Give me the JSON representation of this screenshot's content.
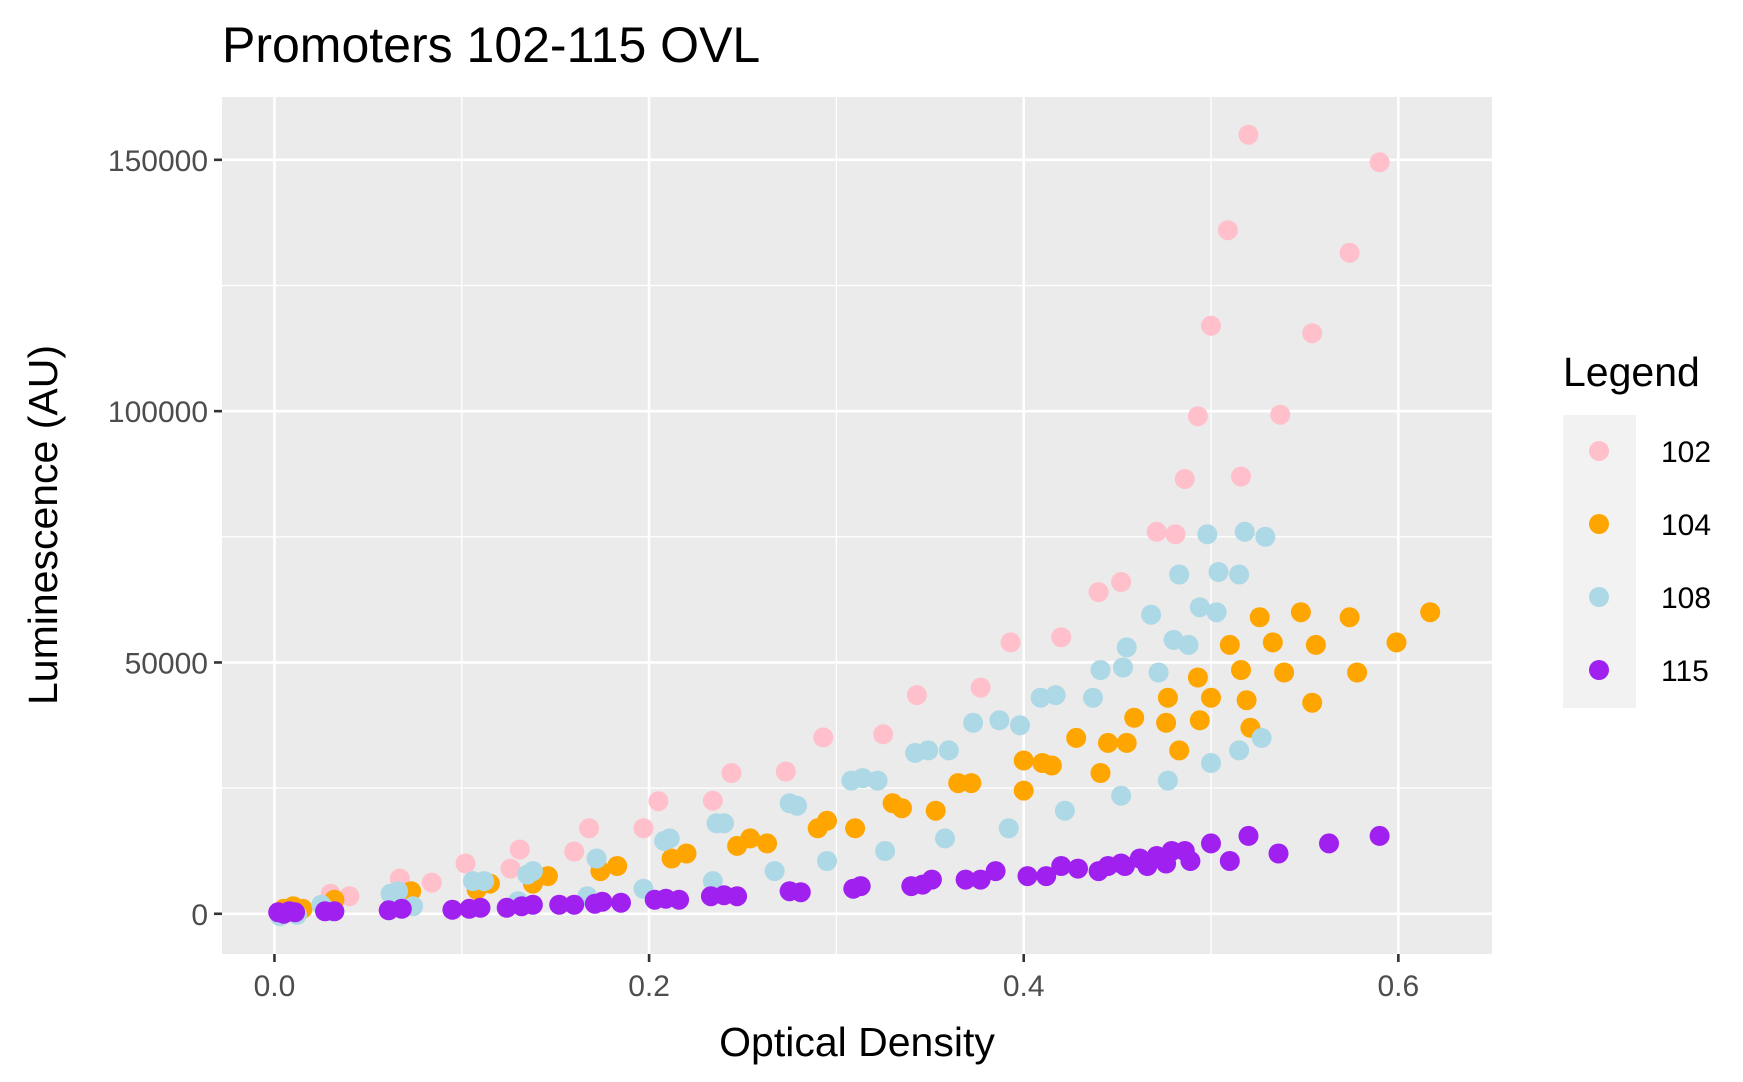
{
  "chart_data": {
    "type": "scatter",
    "title": "Promoters 102-115 OVL",
    "xlabel": "Optical Density",
    "ylabel": "Luminescence (AU)",
    "xlim": [
      -0.028,
      0.65
    ],
    "ylim": [
      -8000,
      162500
    ],
    "x_ticks": [
      0.0,
      0.2,
      0.4,
      0.6
    ],
    "x_tick_labels": [
      "0.0",
      "0.2",
      "0.4",
      "0.6"
    ],
    "y_ticks": [
      0,
      50000,
      100000,
      150000
    ],
    "y_tick_labels": [
      "0",
      "50000",
      "100000",
      "150000"
    ],
    "grid": true,
    "legend": {
      "title": "Legend",
      "position": "right"
    },
    "series": [
      {
        "name": "102",
        "color": "#FFC0CB",
        "points": [
          [
            0.005,
            500
          ],
          [
            0.008,
            800
          ],
          [
            0.03,
            4000
          ],
          [
            0.04,
            3500
          ],
          [
            0.067,
            7000
          ],
          [
            0.084,
            6200
          ],
          [
            0.102,
            10000
          ],
          [
            0.126,
            9000
          ],
          [
            0.131,
            12800
          ],
          [
            0.16,
            12400
          ],
          [
            0.168,
            17000
          ],
          [
            0.197,
            17000
          ],
          [
            0.205,
            22400
          ],
          [
            0.234,
            22500
          ],
          [
            0.244,
            28000
          ],
          [
            0.273,
            28300
          ],
          [
            0.293,
            35100
          ],
          [
            0.325,
            35700
          ],
          [
            0.343,
            43500
          ],
          [
            0.377,
            45000
          ],
          [
            0.393,
            54000
          ],
          [
            0.42,
            55000
          ],
          [
            0.44,
            64000
          ],
          [
            0.452,
            66000
          ],
          [
            0.471,
            76000
          ],
          [
            0.481,
            75500
          ],
          [
            0.486,
            86500
          ],
          [
            0.493,
            99000
          ],
          [
            0.5,
            117000
          ],
          [
            0.509,
            136000
          ],
          [
            0.516,
            87000
          ],
          [
            0.52,
            155000
          ],
          [
            0.537,
            99300
          ],
          [
            0.554,
            115500
          ],
          [
            0.574,
            131500
          ],
          [
            0.59,
            149500
          ]
        ]
      },
      {
        "name": "104",
        "color": "#FFA500",
        "points": [
          [
            0.005,
            1000
          ],
          [
            0.01,
            1500
          ],
          [
            0.015,
            1000
          ],
          [
            0.032,
            2800
          ],
          [
            0.073,
            4500
          ],
          [
            0.108,
            4800
          ],
          [
            0.115,
            6000
          ],
          [
            0.138,
            6000
          ],
          [
            0.146,
            7500
          ],
          [
            0.174,
            8500
          ],
          [
            0.183,
            9500
          ],
          [
            0.212,
            11000
          ],
          [
            0.22,
            12000
          ],
          [
            0.247,
            13500
          ],
          [
            0.254,
            15000
          ],
          [
            0.263,
            14000
          ],
          [
            0.29,
            17000
          ],
          [
            0.295,
            18500
          ],
          [
            0.31,
            17000
          ],
          [
            0.33,
            22000
          ],
          [
            0.335,
            21000
          ],
          [
            0.353,
            20500
          ],
          [
            0.365,
            26000
          ],
          [
            0.372,
            26000
          ],
          [
            0.4,
            30500
          ],
          [
            0.4,
            24500
          ],
          [
            0.41,
            30000
          ],
          [
            0.415,
            29500
          ],
          [
            0.428,
            35000
          ],
          [
            0.441,
            28000
          ],
          [
            0.445,
            34000
          ],
          [
            0.455,
            34000
          ],
          [
            0.459,
            39000
          ],
          [
            0.476,
            38000
          ],
          [
            0.477,
            43000
          ],
          [
            0.483,
            32500
          ],
          [
            0.493,
            47000
          ],
          [
            0.494,
            38500
          ],
          [
            0.5,
            43000
          ],
          [
            0.51,
            53500
          ],
          [
            0.516,
            48500
          ],
          [
            0.519,
            42500
          ],
          [
            0.521,
            37000
          ],
          [
            0.526,
            59000
          ],
          [
            0.533,
            54000
          ],
          [
            0.539,
            48000
          ],
          [
            0.548,
            60000
          ],
          [
            0.554,
            42000
          ],
          [
            0.556,
            53500
          ],
          [
            0.574,
            59000
          ],
          [
            0.578,
            48000
          ],
          [
            0.599,
            54000
          ],
          [
            0.617,
            60000
          ]
        ]
      },
      {
        "name": "108",
        "color": "#ADD8E6",
        "points": [
          [
            0.003,
            -500
          ],
          [
            0.008,
            500
          ],
          [
            0.012,
            -200
          ],
          [
            0.025,
            1800
          ],
          [
            0.03,
            500
          ],
          [
            0.062,
            4000
          ],
          [
            0.066,
            4500
          ],
          [
            0.074,
            1500
          ],
          [
            0.106,
            6500
          ],
          [
            0.112,
            6500
          ],
          [
            0.13,
            2500
          ],
          [
            0.135,
            7800
          ],
          [
            0.138,
            8500
          ],
          [
            0.167,
            3500
          ],
          [
            0.172,
            11000
          ],
          [
            0.197,
            5000
          ],
          [
            0.208,
            14500
          ],
          [
            0.211,
            15000
          ],
          [
            0.234,
            6500
          ],
          [
            0.236,
            18000
          ],
          [
            0.24,
            18000
          ],
          [
            0.267,
            8500
          ],
          [
            0.275,
            22000
          ],
          [
            0.279,
            21500
          ],
          [
            0.295,
            10500
          ],
          [
            0.308,
            26500
          ],
          [
            0.314,
            27000
          ],
          [
            0.322,
            26500
          ],
          [
            0.326,
            12500
          ],
          [
            0.342,
            32000
          ],
          [
            0.349,
            32500
          ],
          [
            0.358,
            15000
          ],
          [
            0.36,
            32500
          ],
          [
            0.373,
            38000
          ],
          [
            0.387,
            38500
          ],
          [
            0.392,
            17000
          ],
          [
            0.398,
            37500
          ],
          [
            0.409,
            43000
          ],
          [
            0.417,
            43500
          ],
          [
            0.422,
            20500
          ],
          [
            0.437,
            43000
          ],
          [
            0.441,
            48500
          ],
          [
            0.452,
            23500
          ],
          [
            0.453,
            49000
          ],
          [
            0.455,
            53000
          ],
          [
            0.468,
            59500
          ],
          [
            0.472,
            48000
          ],
          [
            0.477,
            26500
          ],
          [
            0.48,
            54500
          ],
          [
            0.483,
            67500
          ],
          [
            0.488,
            53500
          ],
          [
            0.494,
            61000
          ],
          [
            0.498,
            75500
          ],
          [
            0.5,
            30000
          ],
          [
            0.503,
            60000
          ],
          [
            0.504,
            68000
          ],
          [
            0.515,
            67500
          ],
          [
            0.515,
            32500
          ],
          [
            0.518,
            76000
          ],
          [
            0.527,
            35000
          ],
          [
            0.529,
            75000
          ]
        ]
      },
      {
        "name": "115",
        "color": "#A020F0",
        "points": [
          [
            0.002,
            300
          ],
          [
            0.005,
            0
          ],
          [
            0.008,
            500
          ],
          [
            0.011,
            300
          ],
          [
            0.027,
            500
          ],
          [
            0.032,
            500
          ],
          [
            0.061,
            700
          ],
          [
            0.068,
            1000
          ],
          [
            0.095,
            800
          ],
          [
            0.104,
            1000
          ],
          [
            0.11,
            1200
          ],
          [
            0.124,
            1200
          ],
          [
            0.132,
            1500
          ],
          [
            0.138,
            1800
          ],
          [
            0.152,
            1800
          ],
          [
            0.16,
            1800
          ],
          [
            0.171,
            2000
          ],
          [
            0.175,
            2400
          ],
          [
            0.185,
            2200
          ],
          [
            0.203,
            2800
          ],
          [
            0.209,
            3000
          ],
          [
            0.216,
            2800
          ],
          [
            0.233,
            3500
          ],
          [
            0.24,
            3700
          ],
          [
            0.247,
            3500
          ],
          [
            0.275,
            4500
          ],
          [
            0.281,
            4300
          ],
          [
            0.309,
            5000
          ],
          [
            0.313,
            5500
          ],
          [
            0.34,
            5500
          ],
          [
            0.346,
            5800
          ],
          [
            0.351,
            6800
          ],
          [
            0.369,
            6800
          ],
          [
            0.377,
            6800
          ],
          [
            0.385,
            8500
          ],
          [
            0.402,
            7500
          ],
          [
            0.412,
            7500
          ],
          [
            0.42,
            9500
          ],
          [
            0.429,
            9000
          ],
          [
            0.44,
            8500
          ],
          [
            0.445,
            9500
          ],
          [
            0.452,
            10000
          ],
          [
            0.454,
            9500
          ],
          [
            0.462,
            11000
          ],
          [
            0.466,
            9500
          ],
          [
            0.471,
            11500
          ],
          [
            0.476,
            10000
          ],
          [
            0.479,
            12500
          ],
          [
            0.486,
            12500
          ],
          [
            0.489,
            10500
          ],
          [
            0.5,
            14000
          ],
          [
            0.51,
            10500
          ],
          [
            0.52,
            15500
          ],
          [
            0.536,
            12000
          ],
          [
            0.563,
            14000
          ],
          [
            0.59,
            15500
          ]
        ]
      }
    ]
  }
}
